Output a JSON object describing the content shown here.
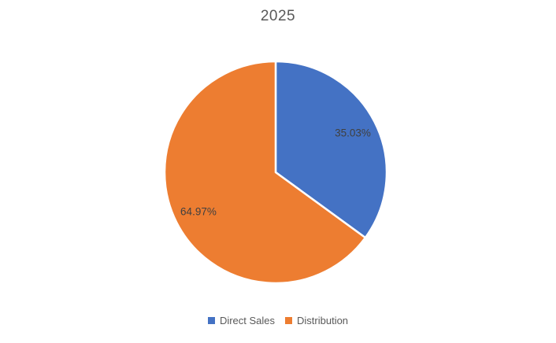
{
  "chart_data": {
    "type": "pie",
    "title": "2025",
    "series": [
      {
        "name": "Direct Sales",
        "value": 35.03,
        "label": "35.03%",
        "color": "#4472C4"
      },
      {
        "name": "Distribution",
        "value": 64.97,
        "label": "64.97%",
        "color": "#ED7D31"
      }
    ],
    "start_angle_deg": 0,
    "direction": "clockwise",
    "legend_position": "bottom",
    "title_color": "#595959",
    "label_color": "#404040",
    "legend_text_color": "#595959",
    "slice_border_color": "#FFFFFF"
  }
}
